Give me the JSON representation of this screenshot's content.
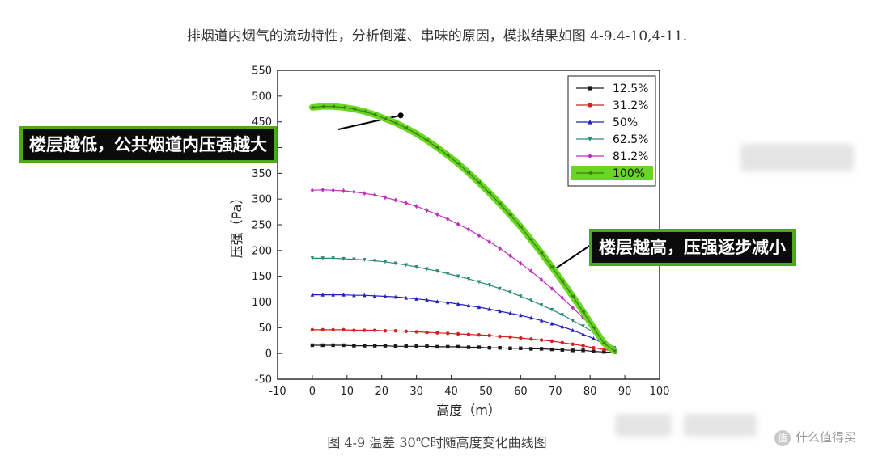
{
  "intro_text": "排烟道内烟气的流动特性，分析倒灌、串味的原因，模拟结果如图 4-9.4-10,4-11.",
  "caption": "图 4-9  温差 30℃时随高度变化曲线图",
  "callouts": {
    "left": "楼层越低，公共烟道内压强越大",
    "right": "楼层越高，压强逐步减小"
  },
  "watermark": "什么值得买",
  "chart_data": {
    "type": "line",
    "xlabel": "高度（m）",
    "ylabel": "压强（Pa）",
    "xlim": [
      -10,
      100
    ],
    "ylim": [
      -50,
      550
    ],
    "xticks": [
      -10,
      0,
      10,
      20,
      30,
      40,
      50,
      60,
      70,
      80,
      90,
      100
    ],
    "yticks": [
      -50,
      0,
      50,
      100,
      150,
      200,
      250,
      300,
      350,
      400,
      450,
      500,
      550
    ],
    "grid": true,
    "legend_position": "top-right",
    "x": [
      0,
      3,
      6,
      9,
      12,
      15,
      18,
      21,
      24,
      27,
      30,
      33,
      36,
      39,
      42,
      45,
      48,
      51,
      54,
      57,
      60,
      63,
      66,
      69,
      72,
      75,
      78,
      81,
      84,
      87
    ],
    "series": [
      {
        "name": "12.5%",
        "color": "#1a1a1a",
        "marker": "square",
        "values": [
          16,
          16,
          16,
          16,
          15,
          15,
          15,
          15,
          14,
          14,
          14,
          14,
          13,
          13,
          13,
          12,
          12,
          11,
          11,
          10,
          10,
          9,
          9,
          8,
          7,
          6,
          6,
          4,
          3,
          2
        ]
      },
      {
        "name": "31.2%",
        "color": "#d42020",
        "marker": "circle",
        "values": [
          46,
          46,
          46,
          46,
          45,
          45,
          45,
          44,
          44,
          43,
          42,
          41,
          40,
          39,
          38,
          37,
          36,
          35,
          33,
          32,
          30,
          28,
          26,
          24,
          21,
          18,
          15,
          11,
          8,
          4
        ]
      },
      {
        "name": "50%",
        "color": "#2222bb",
        "marker": "triangle-up",
        "values": [
          114,
          114,
          114,
          114,
          113,
          113,
          112,
          111,
          110,
          108,
          106,
          104,
          101,
          99,
          96,
          93,
          90,
          86,
          82,
          78,
          74,
          69,
          64,
          58,
          52,
          45,
          37,
          29,
          19,
          8
        ]
      },
      {
        "name": "62.5%",
        "color": "#2a8a7a",
        "marker": "triangle-down",
        "values": [
          185,
          185,
          185,
          184,
          183,
          182,
          180,
          178,
          175,
          172,
          168,
          164,
          160,
          155,
          150,
          145,
          139,
          133,
          126,
          119,
          111,
          103,
          94,
          85,
          75,
          64,
          53,
          41,
          27,
          11
        ]
      },
      {
        "name": "81.2%",
        "color": "#c030c0",
        "marker": "diamond",
        "values": [
          317,
          318,
          317,
          316,
          314,
          311,
          308,
          303,
          298,
          292,
          286,
          278,
          270,
          261,
          251,
          241,
          229,
          217,
          204,
          190,
          175,
          160,
          143,
          126,
          108,
          89,
          69,
          48,
          26,
          10
        ]
      },
      {
        "name": "100%",
        "color": "#3b7f0f",
        "marker": "triangle-left",
        "highlight": true,
        "values": [
          478,
          480,
          480,
          478,
          475,
          470,
          464,
          456,
          448,
          438,
          427,
          414,
          400,
          385,
          369,
          351,
          332,
          312,
          291,
          269,
          246,
          221,
          195,
          168,
          140,
          111,
          81,
          50,
          20,
          5
        ]
      }
    ]
  }
}
